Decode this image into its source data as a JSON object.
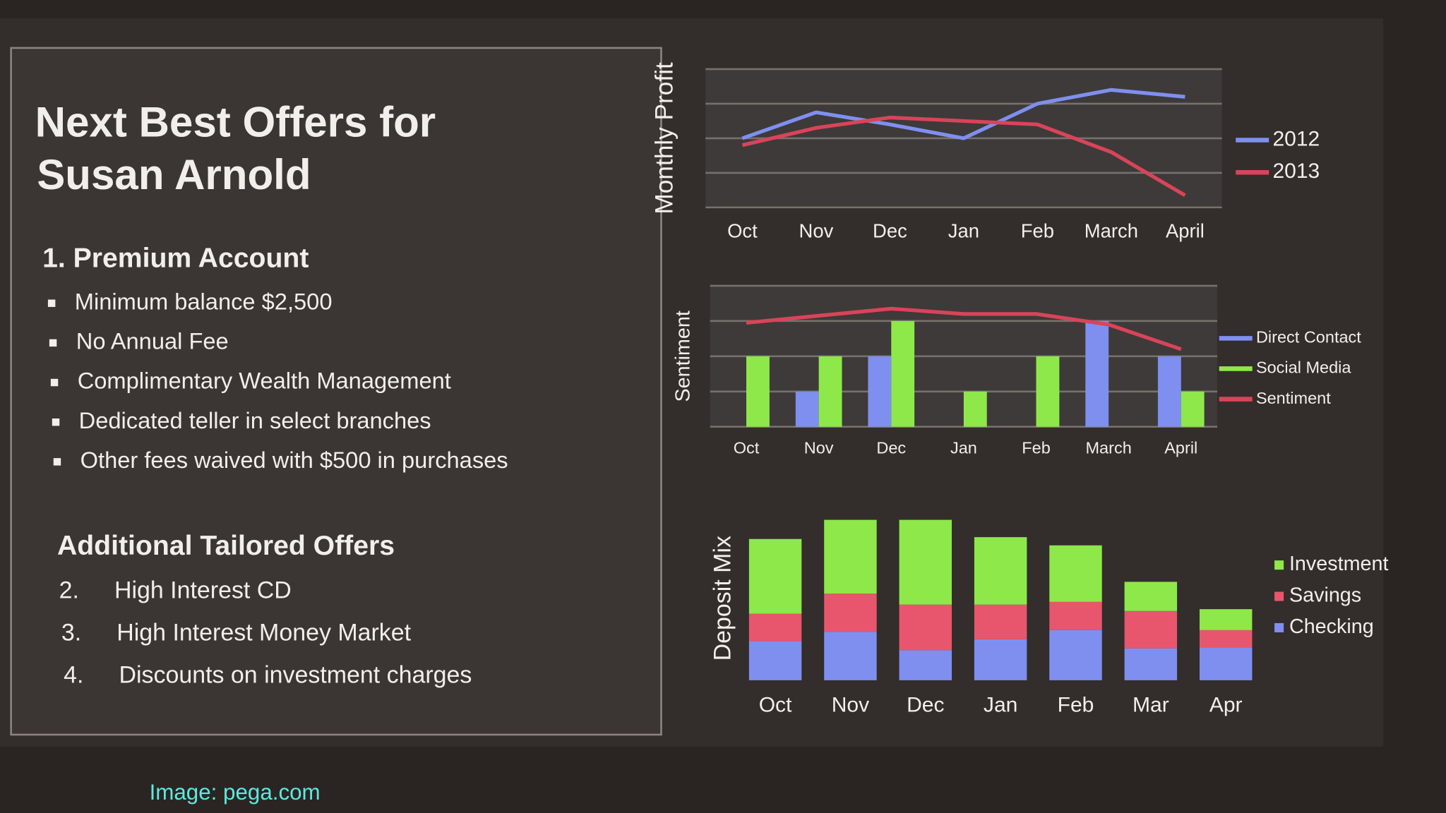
{
  "panel": {
    "title": [
      "Next Best Offers for",
      "Susan Arnold"
    ],
    "primary_offer": "1. Premium Account",
    "features": [
      "Minimum balance $2,500",
      "No Annual Fee",
      "Complimentary Wealth Management",
      "Dedicated teller in select branches",
      "Other fees waived with $500 in purchases"
    ],
    "additional_heading": "Additional Tailored Offers",
    "additional": [
      {
        "number": "2.",
        "text": "High Interest CD"
      },
      {
        "number": "3.",
        "text": "High Interest Money Market"
      },
      {
        "number": "4.",
        "text": "Discounts on investment charges"
      }
    ]
  },
  "caption": "Image: pega.com",
  "chart_data": [
    {
      "type": "line",
      "y_label": "Monthly Profit",
      "categories": [
        "Oct",
        "Nov",
        "Dec",
        "Jan",
        "Feb",
        "March",
        "April"
      ],
      "series": [
        {
          "name": "2012",
          "color": "#7f8ff0",
          "values": [
            2.0,
            2.75,
            2.4,
            2.0,
            3.0,
            3.4,
            3.2
          ]
        },
        {
          "name": "2013",
          "color": "#d9445a",
          "values": [
            1.8,
            2.3,
            2.6,
            2.5,
            2.4,
            1.6,
            0.35
          ]
        }
      ],
      "ylim": [
        0,
        4
      ],
      "yticks": [
        0,
        1,
        2,
        3,
        4
      ],
      "grid": true
    },
    {
      "type": "bar",
      "y_label": "Sentiment",
      "categories": [
        "Oct",
        "Nov",
        "Dec",
        "Jan",
        "Feb",
        "March",
        "April"
      ],
      "series": [
        {
          "name": "Direct Contact",
          "color": "#7f8ff0",
          "values": [
            0,
            1,
            2,
            0,
            0,
            3,
            2
          ]
        },
        {
          "name": "Social Media",
          "color": "#8ee84a",
          "values": [
            2,
            2,
            3,
            1,
            2,
            0,
            1
          ]
        },
        {
          "name": "Sentiment",
          "color": "#d9445a",
          "type": "line",
          "values": [
            2.95,
            3.15,
            3.35,
            3.2,
            3.2,
            2.9,
            2.2
          ]
        }
      ],
      "ylim": [
        0,
        4
      ],
      "yticks": [
        0,
        1,
        2,
        3,
        4
      ],
      "grid": true
    },
    {
      "type": "bar",
      "stacked": true,
      "y_label": "Deposit Mix",
      "categories": [
        "Oct",
        "Nov",
        "Dec",
        "Jan",
        "Feb",
        "Mar",
        "Apr"
      ],
      "series": [
        {
          "name": "Checking",
          "color": "#7f8ff0",
          "values": [
            4.3,
            5.3,
            3.3,
            4.5,
            5.5,
            3.5,
            3.6
          ]
        },
        {
          "name": "Savings",
          "color": "#e8566e",
          "values": [
            3,
            4.2,
            5,
            3.8,
            3.1,
            4.1,
            1.9
          ]
        },
        {
          "name": "Investment",
          "color": "#8ee84a",
          "values": [
            8.2,
            8.1,
            9.3,
            7.4,
            6.2,
            3.2,
            2.3
          ]
        }
      ],
      "ylim": [
        0,
        18
      ],
      "grid": false
    }
  ]
}
